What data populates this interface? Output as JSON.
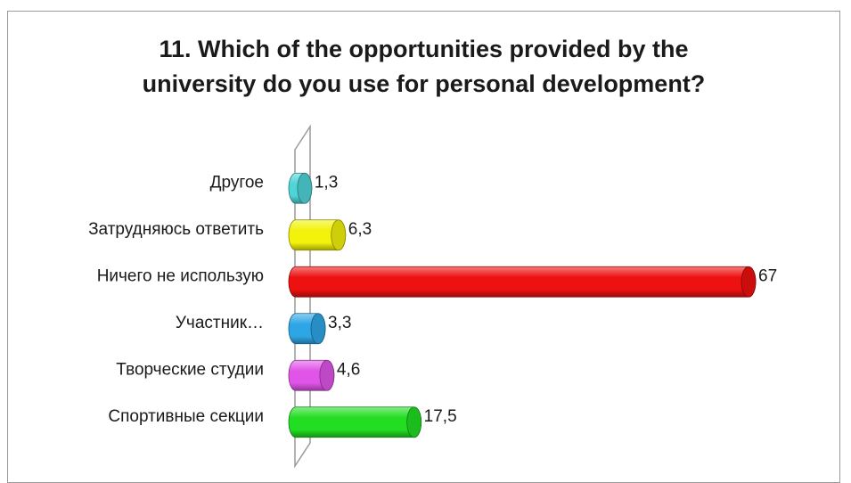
{
  "chart_data": {
    "type": "bar",
    "orientation": "horizontal",
    "style": "3d-cylinder",
    "title": "11. Which of the opportunities provided by the\nuniversity do you use for personal development?",
    "categories": [
      "Спортивные секции",
      "Творческие студии",
      "Участник…",
      "Ничего не использую",
      "Затрудняюсь ответить",
      "Другое"
    ],
    "values": [
      17.5,
      4.6,
      3.3,
      67,
      6.3,
      1.3
    ],
    "value_labels": [
      "17,5",
      "4,6",
      "3,3",
      "67",
      "6,3",
      "1,3"
    ],
    "colors": [
      "#22dd22",
      "#e055e8",
      "#2ea6e6",
      "#ee1111",
      "#f2f20a",
      "#4fd4d8"
    ],
    "xlim": [
      0,
      67
    ],
    "grid": false,
    "legend": "none"
  }
}
